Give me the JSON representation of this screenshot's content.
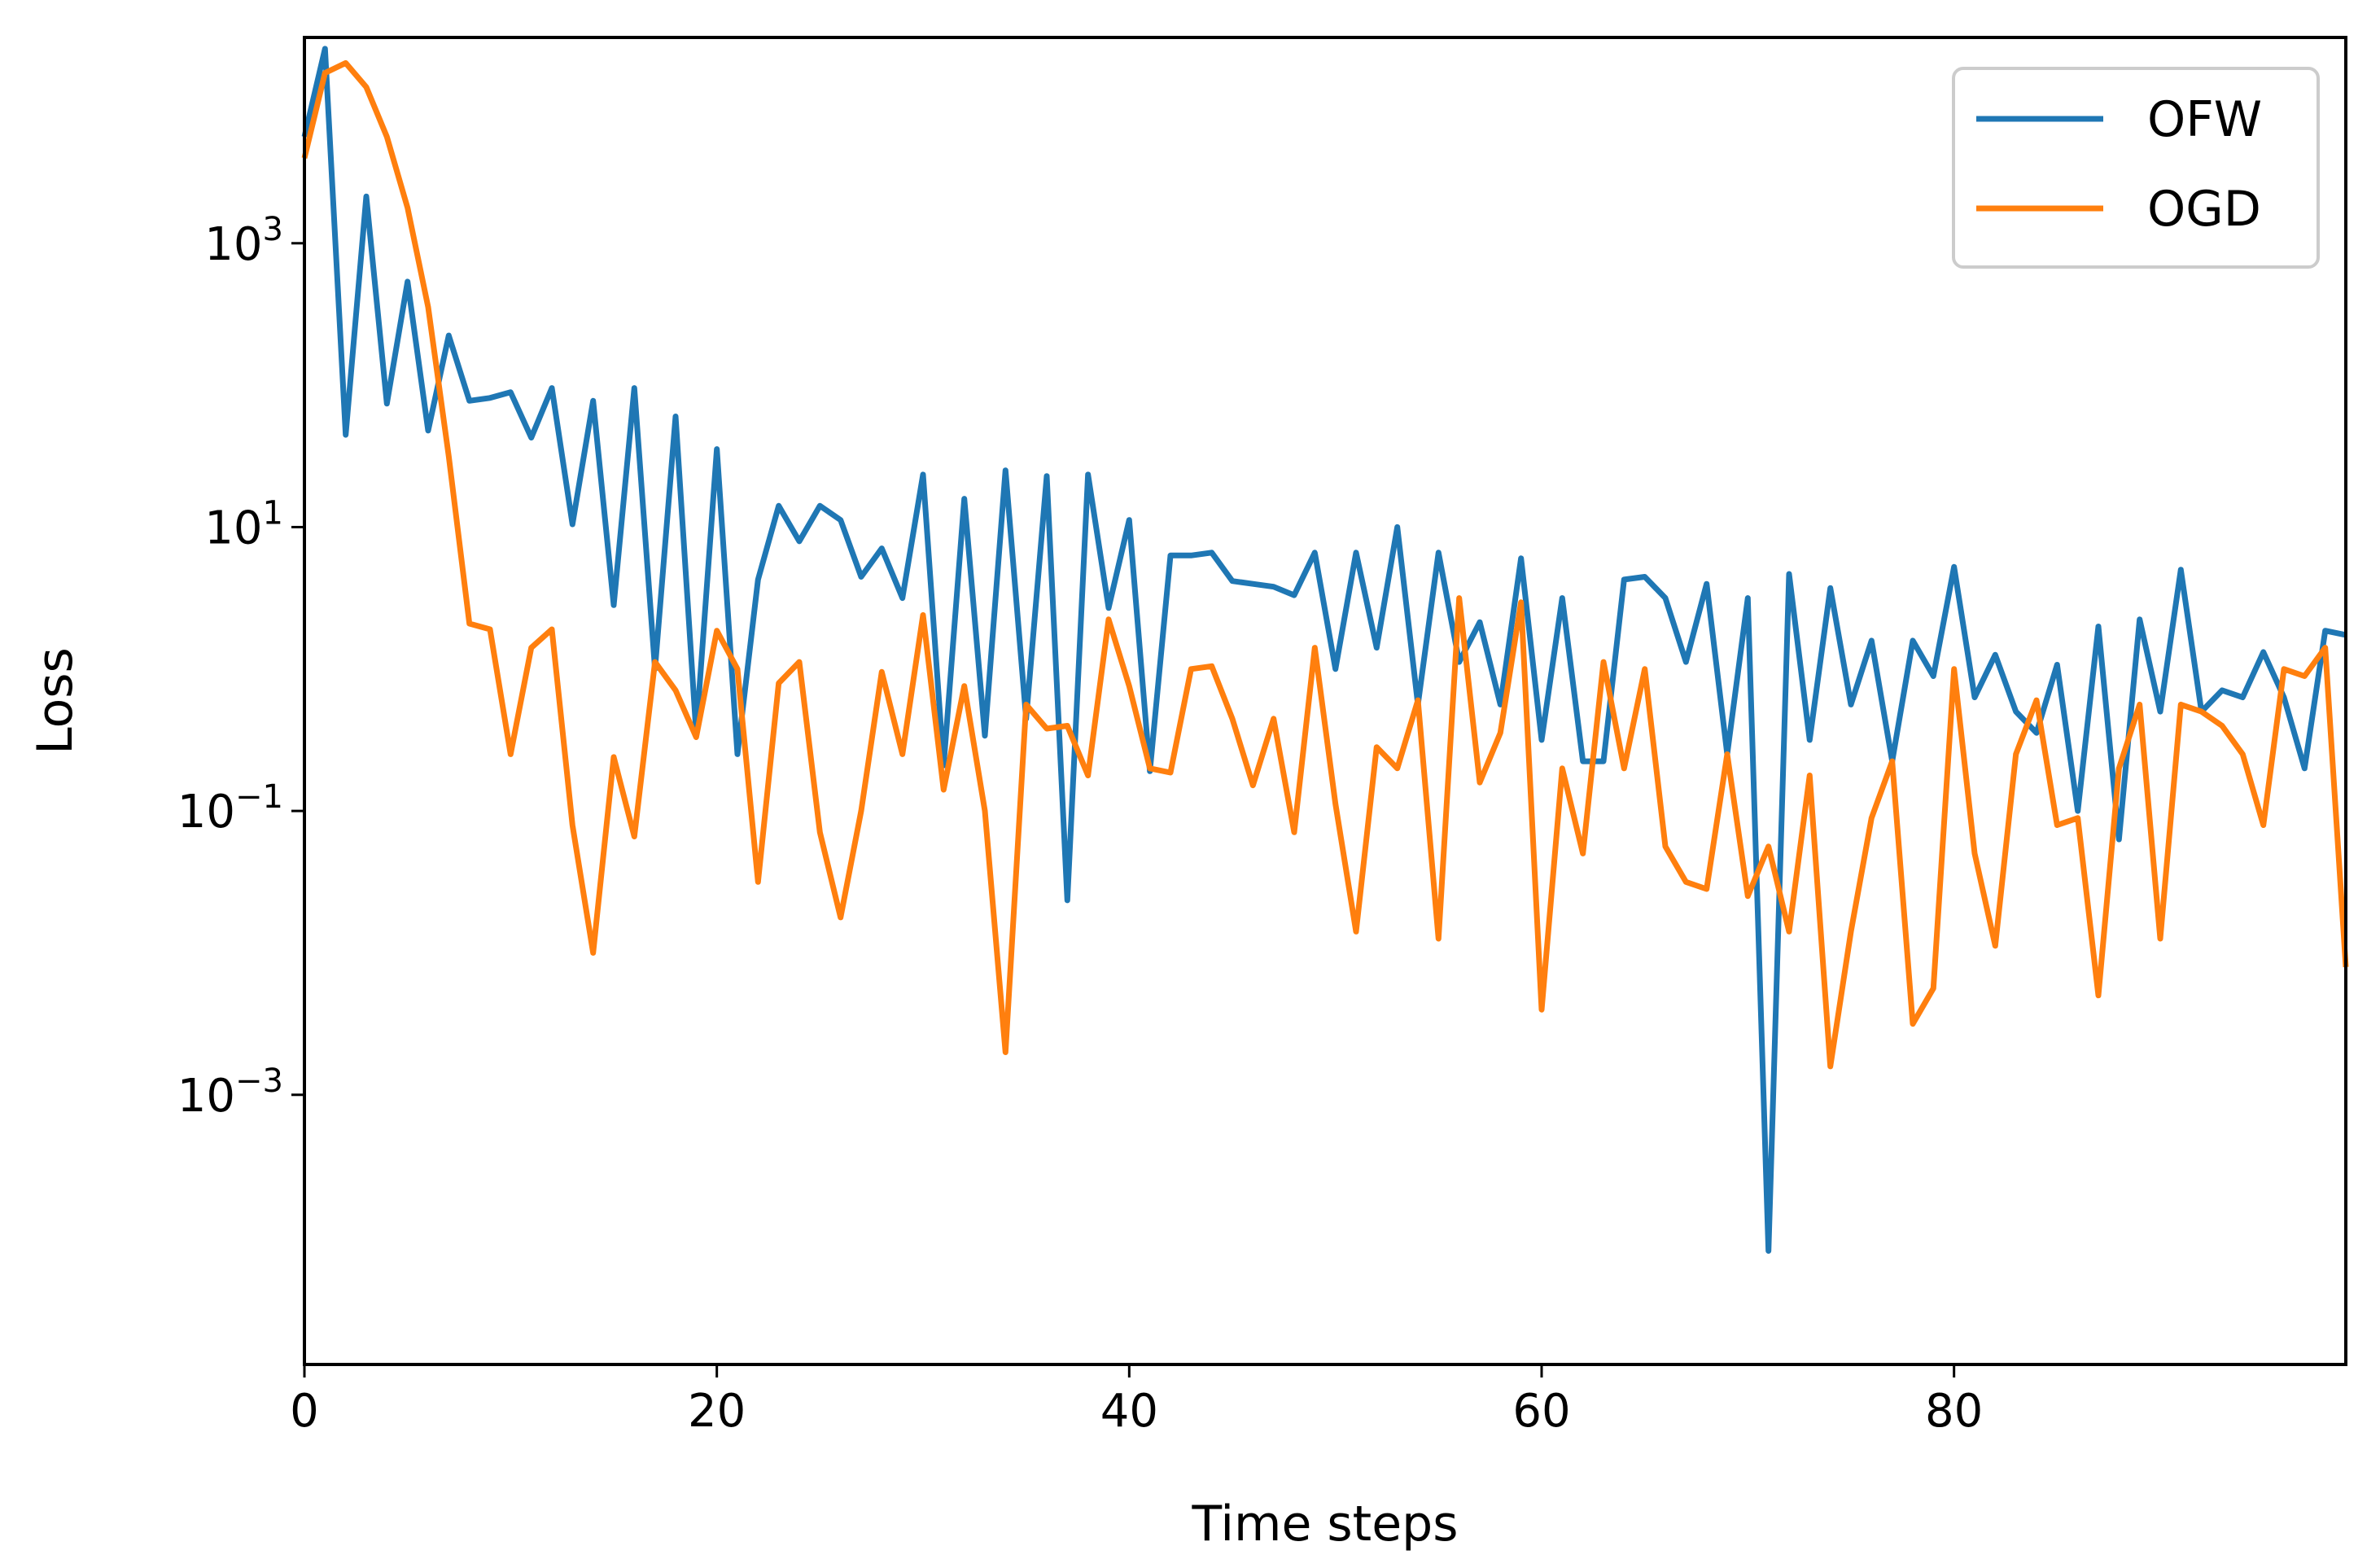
{
  "chart_data": {
    "type": "line",
    "title": "",
    "xlabel": "Time steps",
    "ylabel": "Loss",
    "yscale": "log",
    "xlim": [
      0,
      99
    ],
    "ylim_log10": [
      -4.9,
      4.45
    ],
    "xticks": [
      0,
      20,
      40,
      60,
      80
    ],
    "xtick_labels": [
      "0",
      "20",
      "40",
      "60",
      "80"
    ],
    "yticks_log10": [
      3,
      1,
      -1,
      -3
    ],
    "ytick_labels": [
      {
        "base": "10",
        "exp": "3"
      },
      {
        "base": "10",
        "exp": "1"
      },
      {
        "base": "10",
        "exp": "−1"
      },
      {
        "base": "10",
        "exp": "−3"
      }
    ],
    "legend_position": "upper right",
    "x": [
      0,
      1,
      2,
      3,
      4,
      5,
      6,
      7,
      8,
      9,
      10,
      11,
      12,
      13,
      14,
      15,
      16,
      17,
      18,
      19,
      20,
      21,
      22,
      23,
      24,
      25,
      26,
      27,
      28,
      29,
      30,
      31,
      32,
      33,
      34,
      35,
      36,
      37,
      38,
      39,
      40,
      41,
      42,
      43,
      44,
      45,
      46,
      47,
      48,
      49,
      50,
      51,
      52,
      53,
      54,
      55,
      56,
      57,
      58,
      59,
      60,
      61,
      62,
      63,
      64,
      65,
      66,
      67,
      68,
      69,
      70,
      71,
      72,
      73,
      74,
      75,
      76,
      77,
      78,
      79,
      80,
      81,
      82,
      83,
      84,
      85,
      86,
      87,
      88,
      89,
      90,
      91,
      92,
      93,
      94,
      95,
      96,
      97,
      98,
      99
    ],
    "series": [
      {
        "name": "OFW",
        "color": "#1f77b4",
        "log10_values": [
          3.75,
          4.37,
          1.65,
          3.33,
          1.87,
          2.73,
          1.68,
          2.35,
          1.89,
          1.91,
          1.95,
          1.63,
          1.98,
          1.02,
          1.89,
          0.45,
          1.98,
          0.0,
          1.78,
          -0.45,
          1.55,
          -0.6,
          0.63,
          1.15,
          0.9,
          1.15,
          1.05,
          0.65,
          0.85,
          0.5,
          1.37,
          -0.68,
          1.2,
          -0.47,
          1.4,
          -0.35,
          1.36,
          -1.63,
          1.37,
          0.43,
          1.05,
          -0.72,
          0.8,
          0.8,
          0.82,
          0.62,
          0.6,
          0.58,
          0.52,
          0.82,
          0.0,
          0.82,
          0.15,
          1.0,
          -0.25,
          0.82,
          0.05,
          0.33,
          -0.25,
          0.78,
          -0.5,
          0.5,
          -0.65,
          -0.65,
          0.63,
          0.65,
          0.5,
          0.05,
          0.6,
          -0.6,
          0.5,
          -4.1,
          0.67,
          -0.5,
          0.57,
          -0.25,
          0.2,
          -0.65,
          0.2,
          -0.05,
          0.72,
          -0.2,
          0.1,
          -0.3,
          -0.45,
          0.03,
          -1.0,
          0.3,
          -1.2,
          0.35,
          -0.3,
          0.7,
          -0.3,
          -0.15,
          -0.2,
          0.12,
          -0.2,
          -0.7,
          0.27,
          0.24
        ]
      },
      {
        "name": "OGD",
        "color": "#ff7f0e",
        "log10_values": [
          3.6,
          4.2,
          4.27,
          4.1,
          3.75,
          3.25,
          2.55,
          1.5,
          0.32,
          0.28,
          -0.6,
          0.15,
          0.28,
          -1.1,
          -2.0,
          -0.62,
          -1.18,
          0.05,
          -0.15,
          -0.48,
          0.27,
          0.0,
          -1.5,
          -0.1,
          0.05,
          -1.15,
          -1.75,
          -1.0,
          -0.02,
          -0.6,
          0.38,
          -0.85,
          -0.12,
          -1.0,
          -2.7,
          -0.25,
          -0.42,
          -0.4,
          -0.75,
          0.35,
          -0.12,
          -0.7,
          -0.73,
          0.0,
          0.02,
          -0.35,
          -0.82,
          -0.35,
          -1.15,
          0.15,
          -0.95,
          -1.85,
          -0.55,
          -0.7,
          -0.22,
          -1.9,
          0.5,
          -0.8,
          -0.45,
          0.47,
          -2.4,
          -0.7,
          -1.3,
          0.05,
          -0.7,
          0.0,
          -1.25,
          -1.5,
          -1.55,
          -0.6,
          -1.6,
          -1.25,
          -1.85,
          -0.75,
          -2.8,
          -1.85,
          -1.05,
          -0.65,
          -2.5,
          -2.25,
          0.0,
          -1.3,
          -1.95,
          -0.6,
          -0.22,
          -1.1,
          -1.05,
          -2.3,
          -0.7,
          -0.25,
          -1.9,
          -0.25,
          -0.3,
          -0.4,
          -0.6,
          -1.1,
          0.0,
          -0.05,
          0.15,
          -2.1
        ]
      }
    ]
  }
}
